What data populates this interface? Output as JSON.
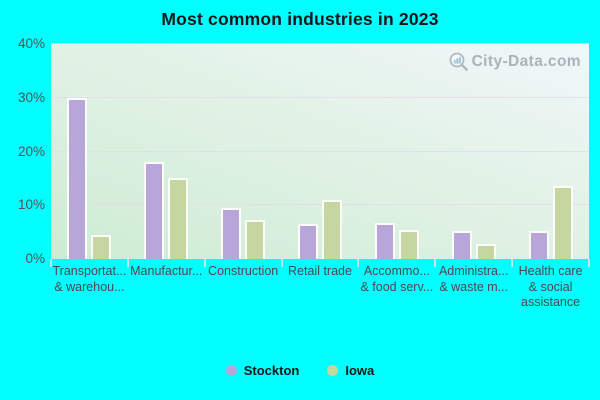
{
  "title": "Most common industries in 2023",
  "watermark": "City-Data.com",
  "colors": {
    "page_background": "#00ffff",
    "plot_gradient_top": "#f0f7fa",
    "plot_gradient_bottom": "#cdecd3",
    "gridline": "#e4dbe7",
    "title_text": "#181818",
    "axis_text": "#4a4a4a",
    "watermark_text": "#a6adb6",
    "stockton_bar": "#b9a6d9",
    "iowa_bar": "#c5d6a0"
  },
  "chart_data": {
    "type": "bar",
    "title": "Most common industries in 2023",
    "xlabel": "",
    "ylabel": "",
    "ylim": [
      0,
      40
    ],
    "grid": true,
    "legend_position": "bottom",
    "yticks": [
      {
        "label": "0%",
        "value": 0
      },
      {
        "label": "10%",
        "value": 10
      },
      {
        "label": "20%",
        "value": 20
      },
      {
        "label": "30%",
        "value": 30
      },
      {
        "label": "40%",
        "value": 40
      }
    ],
    "categories": [
      [
        "Transportat...",
        "& warehou..."
      ],
      [
        "Manufactur..."
      ],
      [
        "Construction"
      ],
      [
        "Retail trade"
      ],
      [
        "Accommo...",
        "& food serv..."
      ],
      [
        "Administra...",
        "& waste m..."
      ],
      [
        "Health care",
        "& social",
        "assistance"
      ]
    ],
    "series": [
      {
        "name": "Stockton",
        "color": "#b9a6d9",
        "values": [
          30,
          18,
          9.5,
          6.6,
          6.7,
          5.3,
          5.3
        ]
      },
      {
        "name": "Iowa",
        "color": "#c5d6a0",
        "values": [
          4.5,
          15,
          7.3,
          11,
          5.4,
          2.8,
          13.5
        ]
      }
    ]
  }
}
